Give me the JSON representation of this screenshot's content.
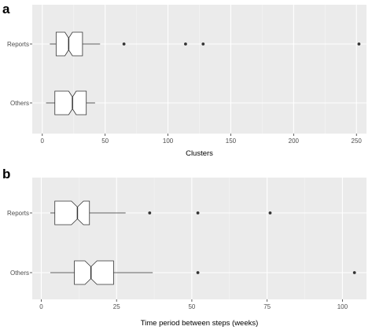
{
  "chart_data": [
    {
      "panel": "a",
      "type": "boxplot",
      "orientation": "horizontal",
      "notched": true,
      "categories": [
        "Reports",
        "Others"
      ],
      "xlabel": "Clusters",
      "xlim": [
        -8,
        258
      ],
      "xticks": [
        0,
        50,
        100,
        150,
        200,
        250
      ],
      "grid": true,
      "boxes": [
        {
          "category": "Reports",
          "whisker_low": 6,
          "q1": 11,
          "notch_low": 18,
          "median": 21,
          "notch_high": 24,
          "q3": 32,
          "whisker_high": 46,
          "outliers": [
            65,
            114,
            128,
            252
          ]
        },
        {
          "category": "Others",
          "whisker_low": 3,
          "q1": 10,
          "notch_low": 21,
          "median": 24,
          "notch_high": 27,
          "q3": 35,
          "whisker_high": 42,
          "outliers": []
        }
      ]
    },
    {
      "panel": "b",
      "type": "boxplot",
      "orientation": "horizontal",
      "notched": true,
      "categories": [
        "Reports",
        "Others"
      ],
      "xlabel": "Time period between steps (weeks)",
      "xlim": [
        -3,
        108
      ],
      "xticks": [
        0,
        25,
        50,
        75,
        100
      ],
      "grid": true,
      "boxes": [
        {
          "category": "Reports",
          "whisker_low": 3,
          "q1": 4.5,
          "notch_low": 10,
          "median": 12,
          "notch_high": 14,
          "q3": 16,
          "whisker_high": 28,
          "outliers": [
            36,
            52,
            76
          ]
        },
        {
          "category": "Others",
          "whisker_low": 3,
          "q1": 11,
          "notch_low": 14.5,
          "median": 16.5,
          "notch_high": 18.5,
          "q3": 24,
          "whisker_high": 37,
          "outliers": [
            52,
            104
          ]
        }
      ]
    }
  ]
}
